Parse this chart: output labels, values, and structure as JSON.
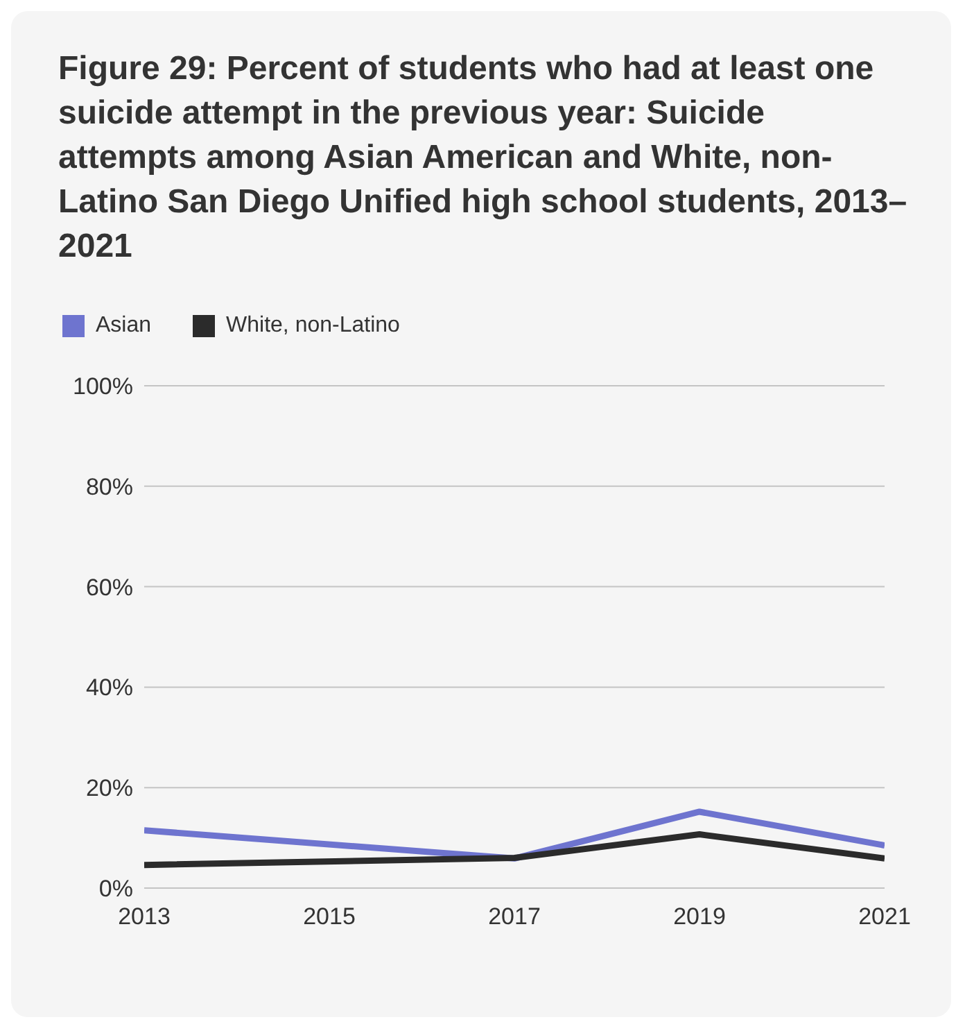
{
  "chart_data": {
    "type": "line",
    "title": "Figure 29: Percent of students who had at least one suicide attempt in the previous year: Suicide attempts among Asian American and White, non-Latino San Diego Unified high school students, 2013–2021",
    "x": [
      2013,
      2017,
      2019,
      2021
    ],
    "series": [
      {
        "name": "Asian",
        "color": "#6e74cf",
        "values": [
          11.5,
          5.9,
          15.2,
          8.5
        ]
      },
      {
        "name": "White, non-Latino",
        "color": "#2b2b2b",
        "values": [
          4.6,
          6,
          10.7,
          5.9
        ]
      }
    ],
    "xlim": [
      2013,
      2021
    ],
    "xticks": [
      2013,
      2015,
      2017,
      2019,
      2021
    ],
    "ylim": [
      0,
      100
    ],
    "yticks": [
      {
        "value": 0,
        "label": "0%"
      },
      {
        "value": 20,
        "label": "20%"
      },
      {
        "value": 40,
        "label": "40%"
      },
      {
        "value": 60,
        "label": "60%"
      },
      {
        "value": 80,
        "label": "80%"
      },
      {
        "value": 100,
        "label": "100%"
      }
    ],
    "grid": "y",
    "legend": "top left",
    "marker": "none",
    "line_style": "solid"
  }
}
